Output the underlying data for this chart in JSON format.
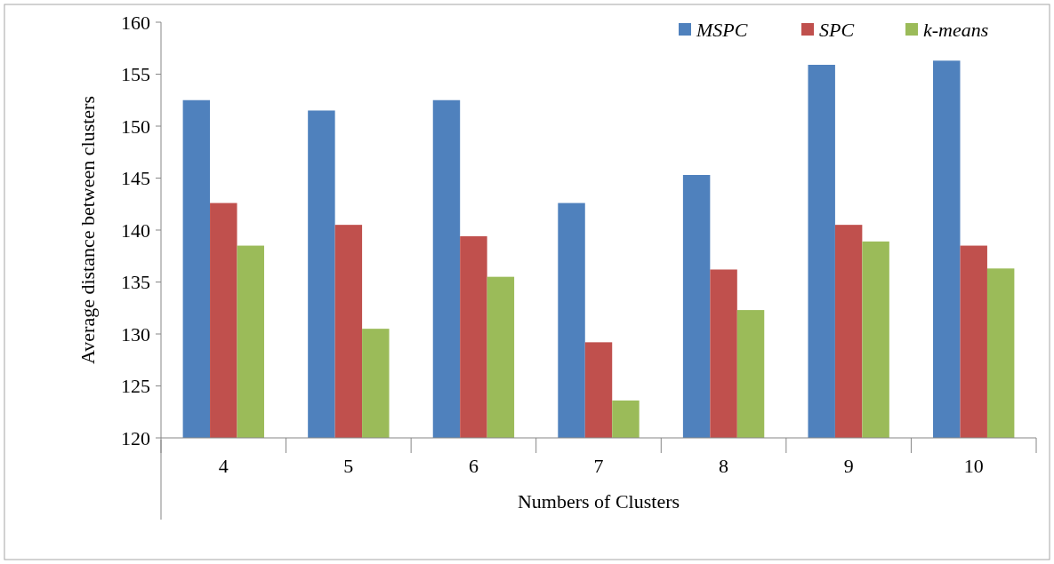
{
  "chart_data": {
    "type": "bar",
    "xlabel": "Numbers of Clusters",
    "ylabel": "Average distance between clusters",
    "categories": [
      "4",
      "5",
      "6",
      "7",
      "8",
      "9",
      "10"
    ],
    "series": [
      {
        "name": "MSPC",
        "color": "#4f81bd",
        "values": [
          152.5,
          151.5,
          152.5,
          142.6,
          145.3,
          155.9,
          156.3
        ]
      },
      {
        "name": "SPC",
        "color": "#c0504d",
        "values": [
          142.6,
          140.5,
          139.4,
          129.2,
          136.2,
          140.5,
          138.5
        ]
      },
      {
        "name": "k-means",
        "color": "#9bbb59",
        "values": [
          138.5,
          130.5,
          135.5,
          123.6,
          132.3,
          138.9,
          136.3
        ]
      }
    ],
    "ylim": [
      120,
      160
    ],
    "yticks": [
      120,
      125,
      130,
      135,
      140,
      145,
      150,
      155,
      160
    ],
    "grid": false,
    "legend": "top right"
  }
}
